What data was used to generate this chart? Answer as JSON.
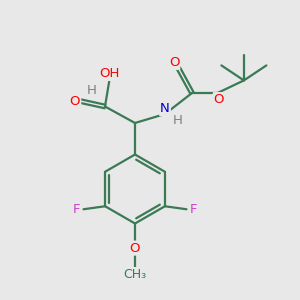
{
  "background_color": "#e8e8e8",
  "bond_color": "#3a7a55",
  "bond_width": 1.6,
  "atom_colors": {
    "O": "#ff0000",
    "N": "#0000cc",
    "F": "#cc44cc",
    "C": "#3a7a55",
    "H": "#808080"
  },
  "font_size": 9.5
}
